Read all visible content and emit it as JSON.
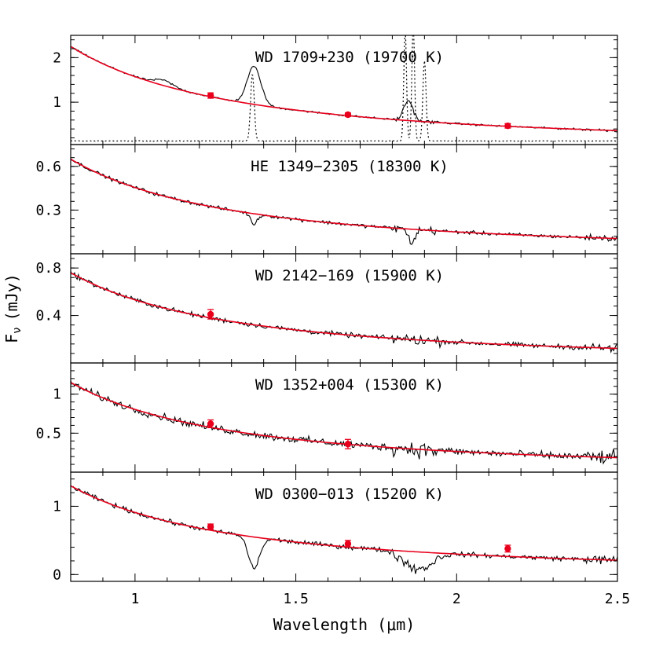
{
  "chart_data": {
    "type": "line",
    "xlabel": "Wavelength (μm)",
    "ylabel": "F",
    "ylabel_sub": "ν",
    "ylabel_unit": "(mJy)",
    "xlim": [
      0.8,
      2.5
    ],
    "xticks": [
      1,
      1.5,
      2,
      2.5
    ],
    "xtick_labels": [
      "1",
      "1.5",
      "2",
      "2.5"
    ],
    "series_styles": {
      "spectrum": "#000000",
      "model": "#e8001c",
      "photometry": "#e8001c",
      "telluric": "#000000"
    },
    "panels": [
      {
        "label": "WD 1709+230 (19700 K)",
        "ylim": [
          0.05,
          2.5
        ],
        "yticks": [
          1,
          2
        ],
        "ytick_labels": [
          "1",
          "2"
        ],
        "model": {
          "amplitude": 2.25,
          "slope": 1.6,
          "pivot": 0.8
        },
        "spectrum_features": [
          {
            "center": 1.37,
            "width": 0.03,
            "depth": 0.85
          },
          {
            "center": 1.85,
            "width": 0.02,
            "depth": 0.45
          },
          {
            "center": 1.09,
            "width": 0.04,
            "depth": 0.12
          }
        ],
        "spectrum_noise": 0.03,
        "photometry": [
          {
            "x": 1.235,
            "y": 1.15,
            "err": 0.06
          },
          {
            "x": 1.662,
            "y": 0.72,
            "err": 0.04
          },
          {
            "x": 2.159,
            "y": 0.47,
            "err": 0.05
          }
        ],
        "telluric": {
          "baseline": 0.13,
          "peaks": [
            {
              "center": 1.365,
              "width": 0.008,
              "height": 1.5
            },
            {
              "center": 1.84,
              "width": 0.006,
              "height": 2.5
            },
            {
              "center": 1.865,
              "width": 0.006,
              "height": 2.6
            },
            {
              "center": 1.9,
              "width": 0.007,
              "height": 1.8
            }
          ]
        }
      },
      {
        "label": "HE 1349−2305 (18300 K)",
        "ylim": [
          0.0,
          0.75
        ],
        "yticks": [
          0.3,
          0.6
        ],
        "ytick_labels": [
          "0.3",
          "0.6"
        ],
        "model": {
          "amplitude": 0.65,
          "slope": 1.6,
          "pivot": 0.8
        },
        "spectrum_features": [
          {
            "center": 1.37,
            "width": 0.015,
            "depth": -0.07
          },
          {
            "center": 1.86,
            "width": 0.015,
            "depth": -0.09
          }
        ],
        "spectrum_noise": 0.018,
        "photometry": [],
        "telluric": null
      },
      {
        "label": "WD 2142−169 (15900 K)",
        "ylim": [
          0.0,
          0.92
        ],
        "yticks": [
          0.4,
          0.8
        ],
        "ytick_labels": [
          "0.4",
          "0.8"
        ],
        "model": {
          "amplitude": 0.76,
          "slope": 1.6,
          "pivot": 0.8
        },
        "spectrum_features": [],
        "spectrum_noise": 0.03,
        "photometry": [
          {
            "x": 1.235,
            "y": 0.41,
            "err": 0.04
          }
        ],
        "telluric": null
      },
      {
        "label": "WD 1352+004 (15300 K)",
        "ylim": [
          0.0,
          1.4
        ],
        "yticks": [
          0.5,
          1
        ],
        "ytick_labels": [
          "0.5",
          "1"
        ],
        "model": {
          "amplitude": 1.15,
          "slope": 1.6,
          "pivot": 0.8
        },
        "spectrum_features": [],
        "spectrum_noise": 0.07,
        "photometry": [
          {
            "x": 1.235,
            "y": 0.62,
            "err": 0.05
          },
          {
            "x": 1.662,
            "y": 0.36,
            "err": 0.06
          }
        ],
        "telluric": null
      },
      {
        "label": "WD 0300−013 (15200 K)",
        "ylim": [
          -0.1,
          1.5
        ],
        "yticks": [
          0,
          1
        ],
        "ytick_labels": [
          "0",
          "1"
        ],
        "model": {
          "amplitude": 1.3,
          "slope": 1.6,
          "pivot": 0.8
        },
        "spectrum_features": [
          {
            "center": 1.37,
            "width": 0.025,
            "depth": -0.45
          },
          {
            "center": 1.88,
            "width": 0.06,
            "depth": -0.25
          }
        ],
        "spectrum_noise": 0.05,
        "photometry": [
          {
            "x": 1.235,
            "y": 0.7,
            "err": 0.04
          },
          {
            "x": 1.662,
            "y": 0.45,
            "err": 0.05
          },
          {
            "x": 2.159,
            "y": 0.38,
            "err": 0.05
          }
        ],
        "telluric": null
      }
    ]
  }
}
